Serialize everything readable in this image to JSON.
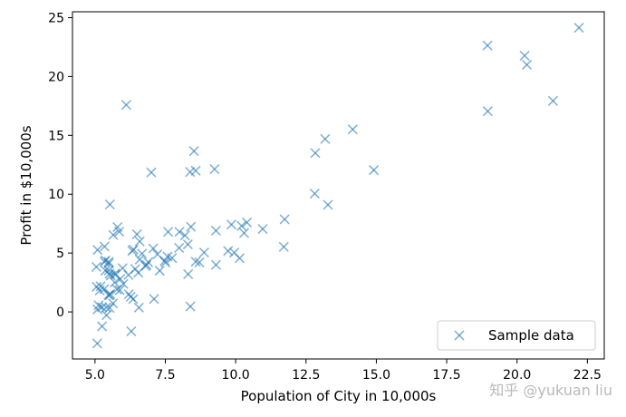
{
  "chart_data": {
    "type": "scatter",
    "title": "",
    "xlabel": "Population of City in 10,000s",
    "ylabel": "Profit in $10,000s",
    "xlim": [
      4.2,
      23.1
    ],
    "ylim": [
      -4.0,
      25.5
    ],
    "xticks": [
      5.0,
      7.5,
      10.0,
      12.5,
      15.0,
      17.5,
      20.0,
      22.5
    ],
    "xtick_labels": [
      "5.0",
      "7.5",
      "10.0",
      "12.5",
      "15.0",
      "17.5",
      "20.0",
      "22.5"
    ],
    "yticks": [
      0,
      5,
      10,
      15,
      20,
      25
    ],
    "ytick_labels": [
      "0",
      "5",
      "10",
      "15",
      "20",
      "25"
    ],
    "grid": false,
    "legend_position": "lower-right",
    "marker": "x",
    "color": "#1f77b4",
    "series": [
      {
        "name": "Sample data",
        "points": [
          [
            6.11,
            17.59
          ],
          [
            5.53,
            9.13
          ],
          [
            8.52,
            13.66
          ],
          [
            7.0,
            11.85
          ],
          [
            5.86,
            6.82
          ],
          [
            8.38,
            11.89
          ],
          [
            7.48,
            4.35
          ],
          [
            8.58,
            12.0
          ],
          [
            6.49,
            6.6
          ],
          [
            5.05,
            3.82
          ],
          [
            5.71,
            3.25
          ],
          [
            14.16,
            15.51
          ],
          [
            5.73,
            3.16
          ],
          [
            8.41,
            7.23
          ],
          [
            5.64,
            0.72
          ],
          [
            5.37,
            3.51
          ],
          [
            6.37,
            5.3
          ],
          [
            5.13,
            0.56
          ],
          [
            6.43,
            3.65
          ],
          [
            7.07,
            5.39
          ],
          [
            6.19,
            3.14
          ],
          [
            20.27,
            21.77
          ],
          [
            5.49,
            4.26
          ],
          [
            6.33,
            5.19
          ],
          [
            5.56,
            3.08
          ],
          [
            18.95,
            22.64
          ],
          [
            12.83,
            13.5
          ],
          [
            10.96,
            7.05
          ],
          [
            13.18,
            14.69
          ],
          [
            22.2,
            24.15
          ],
          [
            5.25,
            -1.22
          ],
          [
            6.59,
            5.99
          ],
          [
            9.25,
            12.13
          ],
          [
            5.88,
            1.85
          ],
          [
            5.65,
            6.54
          ],
          [
            10.14,
            4.56
          ],
          [
            5.49,
            4.12
          ],
          [
            5.34,
            4.26
          ],
          [
            9.73,
            5.18
          ],
          [
            5.34,
            5.56
          ],
          [
            6.83,
            4.0
          ],
          [
            5.54,
            1.53
          ],
          [
            7.99,
            5.44
          ],
          [
            5.37,
            4.38
          ],
          [
            5.17,
            1.82
          ],
          [
            21.28,
            17.93
          ],
          [
            14.91,
            12.05
          ],
          [
            18.96,
            17.05
          ],
          [
            7.22,
            4.89
          ],
          [
            8.3,
            5.74
          ],
          [
            5.52,
            1.42
          ],
          [
            7.58,
            4.7
          ],
          [
            5.4,
            0.38
          ],
          [
            6.59,
            4.45
          ],
          [
            8.39,
            0.46
          ],
          [
            6.29,
            -1.65
          ],
          [
            5.33,
            1.94
          ],
          [
            12.81,
            10.05
          ],
          [
            6.56,
            0.37
          ],
          [
            6.01,
            2.38
          ],
          [
            5.49,
            3.52
          ],
          [
            5.52,
            0.34
          ],
          [
            5.06,
            2.14
          ],
          [
            5.98,
            3.72
          ],
          [
            5.25,
            0.4
          ],
          [
            5.09,
            0.21
          ],
          [
            5.78,
            1.91
          ],
          [
            6.36,
            1.09
          ],
          [
            5.41,
            -0.28
          ],
          [
            6.67,
            4.95
          ],
          [
            5.52,
            3.24
          ],
          [
            6.89,
            4.23
          ],
          [
            9.95,
            5.04
          ],
          [
            8.31,
            3.21
          ],
          [
            5.08,
            -2.68
          ],
          [
            6.27,
            1.29
          ],
          [
            5.48,
            1.43
          ],
          [
            20.35,
            21.0
          ],
          [
            5.09,
            5.27
          ],
          [
            8.71,
            4.21
          ],
          [
            10.4,
            7.6
          ],
          [
            8.58,
            4.27
          ],
          [
            13.28,
            9.1
          ],
          [
            6.54,
            3.33
          ],
          [
            10.21,
            7.31
          ],
          [
            7.74,
            4.58
          ],
          [
            8.88,
            5.05
          ],
          [
            11.74,
            7.87
          ],
          [
            11.71,
            5.53
          ],
          [
            9.85,
            7.42
          ],
          [
            5.2,
            2.18
          ],
          [
            7.5,
            4.2
          ],
          [
            8.2,
            6.5
          ],
          [
            6.8,
            3.9
          ],
          [
            5.9,
            2.8
          ],
          [
            6.2,
            1.5
          ],
          [
            7.1,
            1.1
          ],
          [
            9.3,
            4.0
          ],
          [
            5.7,
            2.5
          ],
          [
            7.3,
            3.5
          ],
          [
            8.0,
            6.8
          ],
          [
            9.3,
            6.9
          ],
          [
            10.3,
            6.7
          ],
          [
            5.8,
            7.2
          ],
          [
            7.6,
            6.8
          ]
        ]
      }
    ],
    "watermark": "知乎 @yukuan liu"
  }
}
